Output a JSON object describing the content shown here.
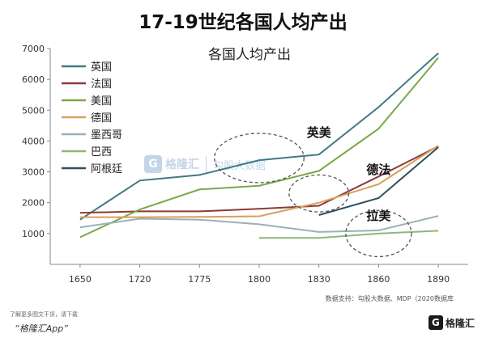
{
  "page_title": "17-19世纪各国人均产出",
  "source_note": "数据支持：勾股大数据、MDP（2020数据库",
  "promo_line": "了解更多图文干货，请下载",
  "promo_app": "“格隆汇App”",
  "logo_text": "格隆汇",
  "logo_mark": "G",
  "watermark": {
    "mark": "G",
    "brand": "格隆汇",
    "text": "勾股大数据"
  },
  "chart_data": {
    "type": "line",
    "title": "各国人均产出",
    "categories": [
      "1650",
      "1720",
      "1775",
      "1800",
      "1830",
      "1860",
      "1890"
    ],
    "ylim": [
      0,
      7000
    ],
    "yticks": [
      1000,
      2000,
      3000,
      4000,
      5000,
      6000,
      7000
    ],
    "grid": false,
    "legend_position": "top-left",
    "series": [
      {
        "name": "英国",
        "color": "#3f7a82",
        "values": [
          1450,
          2720,
          2900,
          3380,
          3560,
          5100,
          6850
        ]
      },
      {
        "name": "法国",
        "color": "#8b3a3a",
        "values": [
          1670,
          1720,
          1720,
          1800,
          1900,
          2850,
          3830
        ]
      },
      {
        "name": "美国",
        "color": "#7aa84a",
        "values": [
          880,
          1780,
          2430,
          2550,
          3030,
          4400,
          6700
        ]
      },
      {
        "name": "德国",
        "color": "#d8a05a",
        "values": [
          1530,
          1530,
          1540,
          1560,
          2000,
          2600,
          3850
        ]
      },
      {
        "name": "墨西哥",
        "color": "#9ab0b8",
        "values": [
          1200,
          1480,
          1450,
          1300,
          1050,
          1100,
          1570
        ]
      },
      {
        "name": "巴西",
        "color": "#8db87a",
        "values": [
          null,
          null,
          null,
          860,
          860,
          1000,
          1090
        ]
      },
      {
        "name": "阿根廷",
        "color": "#2f4f5f",
        "values": [
          null,
          null,
          null,
          null,
          1600,
          2150,
          3800
        ]
      }
    ],
    "annotations": [
      {
        "label": "英美",
        "cx": 1800,
        "cy": 3450,
        "rx": 0.75,
        "ry": 800,
        "lx": 1830,
        "ly": 4300
      },
      {
        "label": "德法",
        "cx": 1830,
        "cy": 2300,
        "rx": 0.5,
        "ry": 600,
        "lx": 1860,
        "ly": 3100
      },
      {
        "label": "拉美",
        "cx": 1860,
        "cy": 1000,
        "rx": 0.55,
        "ry": 750,
        "lx": 1860,
        "ly": 1600
      }
    ]
  }
}
